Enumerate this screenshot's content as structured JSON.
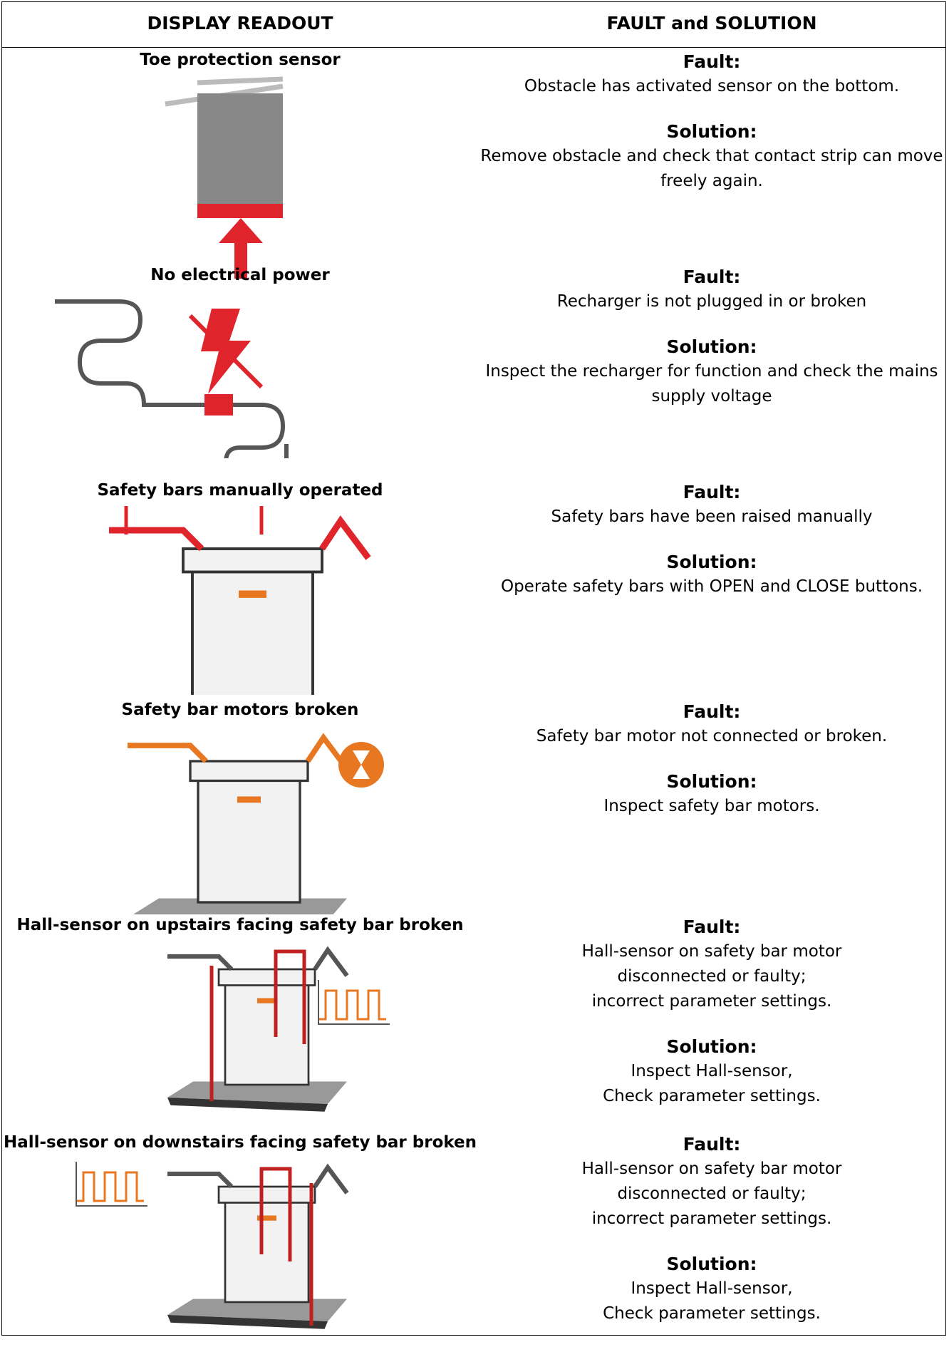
{
  "header": {
    "left": "DISPLAY READOUT",
    "right": "FAULT and SOLUTION"
  },
  "rows": [
    {
      "readout": "Toe protection sensor",
      "fault_label": "Fault:",
      "fault": [
        "Obstacle has activated sensor on the bottom."
      ],
      "solution_label": "Solution:",
      "solution": [
        "Remove obstacle and check that contact strip can move freely again."
      ]
    },
    {
      "readout": "No electrical power",
      "fault_label": "Fault:",
      "fault": [
        "Recharger is not plugged in or broken"
      ],
      "solution_label": "Solution:",
      "solution": [
        "Inspect the recharger for function and check the mains supply voltage"
      ]
    },
    {
      "readout": "Safety bars manually operated",
      "fault_label": "Fault:",
      "fault": [
        "Safety bars have been raised manually"
      ],
      "solution_label": "Solution:",
      "solution": [
        "Operate safety bars with OPEN and CLOSE buttons."
      ]
    },
    {
      "readout": "Safety bar motors broken",
      "fault_label": "Fault:",
      "fault": [
        "Safety bar motor not connected or broken."
      ],
      "solution_label": "Solution:",
      "solution": [
        "Inspect safety bar motors."
      ]
    },
    {
      "readout": "Hall-sensor on upstairs facing safety bar broken",
      "fault_label": "Fault:",
      "fault": [
        "Hall-sensor on safety bar motor",
        "disconnected or faulty;",
        "incorrect parameter settings."
      ],
      "solution_label": "Solution:",
      "solution": [
        "Inspect Hall-sensor,",
        "Check parameter settings."
      ]
    },
    {
      "readout": "Hall-sensor on downstairs facing safety bar broken",
      "fault_label": "Fault:",
      "fault": [
        "Hall-sensor on safety bar motor",
        "disconnected or faulty;",
        "incorrect parameter settings."
      ],
      "solution_label": "Solution:",
      "solution": [
        "Inspect Hall-sensor,",
        "Check parameter settings."
      ]
    }
  ]
}
